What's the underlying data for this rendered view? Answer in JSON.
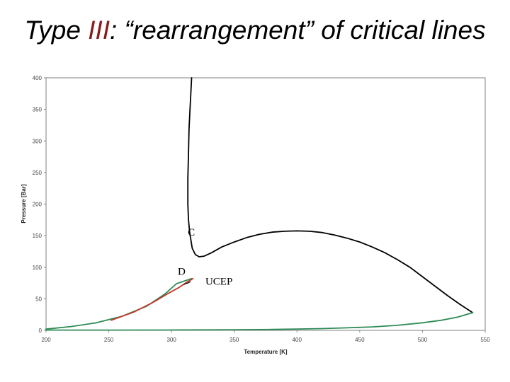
{
  "slide": {
    "title_prefix": "Type ",
    "title_highlight": "III",
    "title_suffix": ": “rearrangement” of critical lines",
    "highlight_color": "#8b1a1a"
  },
  "chart_data": {
    "type": "line",
    "xlabel": "Temperature [K]",
    "ylabel": "Pressure [Bar]",
    "xlim": [
      200,
      550
    ],
    "ylim": [
      0,
      400
    ],
    "xticks": [
      200,
      250,
      300,
      350,
      400,
      450,
      500,
      550
    ],
    "yticks": [
      0,
      50,
      100,
      150,
      200,
      250,
      300,
      350,
      400
    ],
    "grid": false,
    "legend": "none",
    "annotations": [
      {
        "text": "C",
        "x": 313,
        "y": 150
      },
      {
        "text": "D",
        "x": 305,
        "y": 88
      },
      {
        "text": "UCEP",
        "x": 327,
        "y": 72
      }
    ],
    "series": [
      {
        "color": "#000000",
        "points": [
          [
            316,
            400
          ],
          [
            315,
            360
          ],
          [
            314,
            320
          ],
          [
            313.5,
            280
          ],
          [
            313,
            240
          ],
          [
            313,
            200
          ],
          [
            313.5,
            175
          ],
          [
            314.5,
            155
          ],
          [
            316.5,
            130
          ],
          [
            319,
            120
          ],
          [
            322,
            116.5
          ],
          [
            326,
            117.5
          ],
          [
            332,
            123
          ],
          [
            340,
            132
          ],
          [
            350,
            140
          ],
          [
            360,
            147
          ],
          [
            370,
            152
          ],
          [
            380,
            155.5
          ],
          [
            390,
            157
          ],
          [
            400,
            157.5
          ],
          [
            410,
            157
          ],
          [
            420,
            155
          ],
          [
            430,
            151
          ],
          [
            440,
            146
          ],
          [
            450,
            140
          ],
          [
            460,
            132
          ],
          [
            470,
            123
          ],
          [
            480,
            112
          ],
          [
            490,
            100
          ],
          [
            500,
            85
          ],
          [
            510,
            70
          ],
          [
            520,
            55
          ],
          [
            530,
            41
          ],
          [
            540,
            28
          ]
        ]
      },
      {
        "color": "#2e8b57",
        "points": [
          [
            200,
            2
          ],
          [
            220,
            6
          ],
          [
            240,
            12
          ],
          [
            260,
            22
          ],
          [
            280,
            38
          ],
          [
            295,
            58
          ],
          [
            304,
            74
          ],
          [
            310,
            78
          ],
          [
            316,
            82
          ]
        ]
      },
      {
        "color": "#c0392b",
        "points": [
          [
            252,
            16
          ],
          [
            270,
            29
          ],
          [
            285,
            44
          ],
          [
            297,
            58
          ],
          [
            306,
            68
          ],
          [
            312,
            76
          ],
          [
            317,
            82
          ]
        ]
      },
      {
        "color": "#2e8b57",
        "points": [
          [
            200,
            0.5
          ],
          [
            250,
            0.5
          ],
          [
            300,
            0.6
          ],
          [
            350,
            1
          ],
          [
            380,
            1.5
          ],
          [
            400,
            2
          ],
          [
            420,
            2.8
          ],
          [
            440,
            4
          ],
          [
            460,
            5.5
          ],
          [
            480,
            8
          ],
          [
            500,
            12
          ],
          [
            515,
            16
          ],
          [
            528,
            21
          ],
          [
            540,
            28
          ]
        ]
      },
      {
        "color": "#000000",
        "points": [
          [
            310,
            73
          ],
          [
            313,
            75
          ],
          [
            315,
            77
          ]
        ]
      }
    ]
  }
}
